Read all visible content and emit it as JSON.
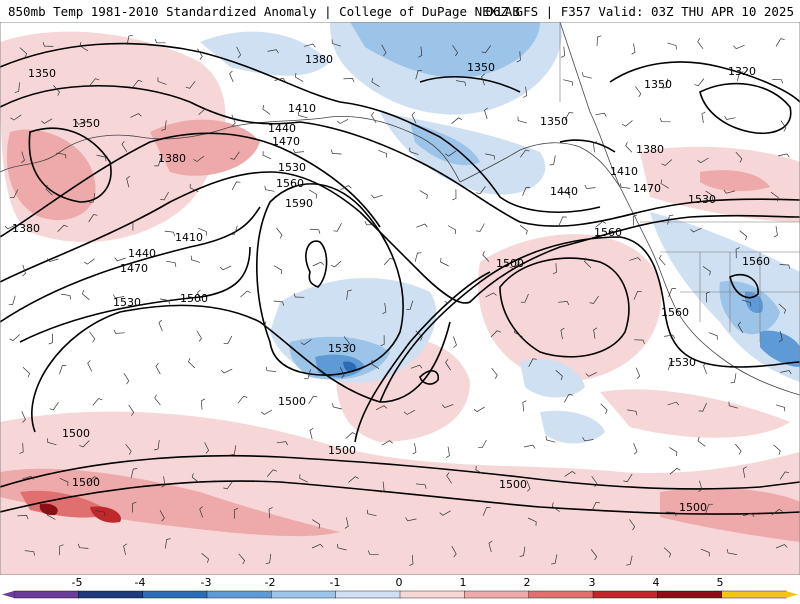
{
  "header": {
    "title_left": "850mb Temp 1981-2010 Standardized Anomaly | College of DuPage NEXLAB",
    "title_right": "06Z GFS | F357 Valid: 03Z THU APR 10 2025"
  },
  "contour_labels": [
    "1350",
    "1380",
    "1350",
    "1320",
    "1350",
    "1350",
    "1350",
    "1380",
    "1410",
    "1440",
    "1470",
    "1380",
    "1530",
    "1560",
    "1590",
    "1380",
    "1410",
    "1440",
    "1470",
    "1410",
    "1470",
    "1440",
    "1530",
    "1560",
    "1500",
    "1560",
    "1500",
    "1530",
    "1560",
    "1530",
    "1530",
    "1500",
    "1500",
    "1500",
    "1500"
  ],
  "colorbar": {
    "ticks": [
      "-5",
      "-4",
      "-3",
      "-2",
      "-1",
      "0",
      "1",
      "2",
      "3",
      "4",
      "5"
    ],
    "colors": [
      "#6a3d9a",
      "#1f3a7a",
      "#2b6cb5",
      "#5d9ad6",
      "#9cc3e8",
      "#cfe0f2",
      "#f6d6d6",
      "#eeaaaa",
      "#e07070",
      "#c0292c",
      "#8b0f14",
      "#f0c419"
    ]
  }
}
